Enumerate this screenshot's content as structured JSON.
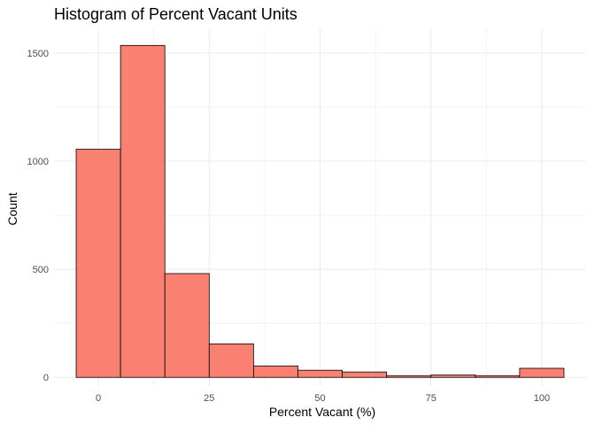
{
  "chart_data": {
    "type": "bar",
    "title": "Histogram of Percent Vacant Units",
    "xlabel": "Percent Vacant (%)",
    "ylabel": "Count",
    "bins": [
      {
        "x0": -5,
        "x1": 5,
        "count": 1055
      },
      {
        "x0": 5,
        "x1": 15,
        "count": 1535
      },
      {
        "x0": 15,
        "x1": 25,
        "count": 480
      },
      {
        "x0": 25,
        "x1": 35,
        "count": 155
      },
      {
        "x0": 35,
        "x1": 45,
        "count": 53
      },
      {
        "x0": 45,
        "x1": 55,
        "count": 33
      },
      {
        "x0": 55,
        "x1": 65,
        "count": 25
      },
      {
        "x0": 65,
        "x1": 75,
        "count": 8
      },
      {
        "x0": 75,
        "x1": 85,
        "count": 11
      },
      {
        "x0": 85,
        "x1": 95,
        "count": 8
      },
      {
        "x0": 95,
        "x1": 105,
        "count": 42
      }
    ],
    "xlim": [
      -10,
      110
    ],
    "ylim": [
      -40,
      1610
    ],
    "x_ticks": [
      0,
      25,
      50,
      75,
      100
    ],
    "y_ticks": [
      0,
      500,
      1000,
      1500
    ],
    "grid": true,
    "legend": "none",
    "bar_fill": "#fa8072",
    "bar_stroke": "#000000",
    "grid_color": "#ebebeb"
  }
}
